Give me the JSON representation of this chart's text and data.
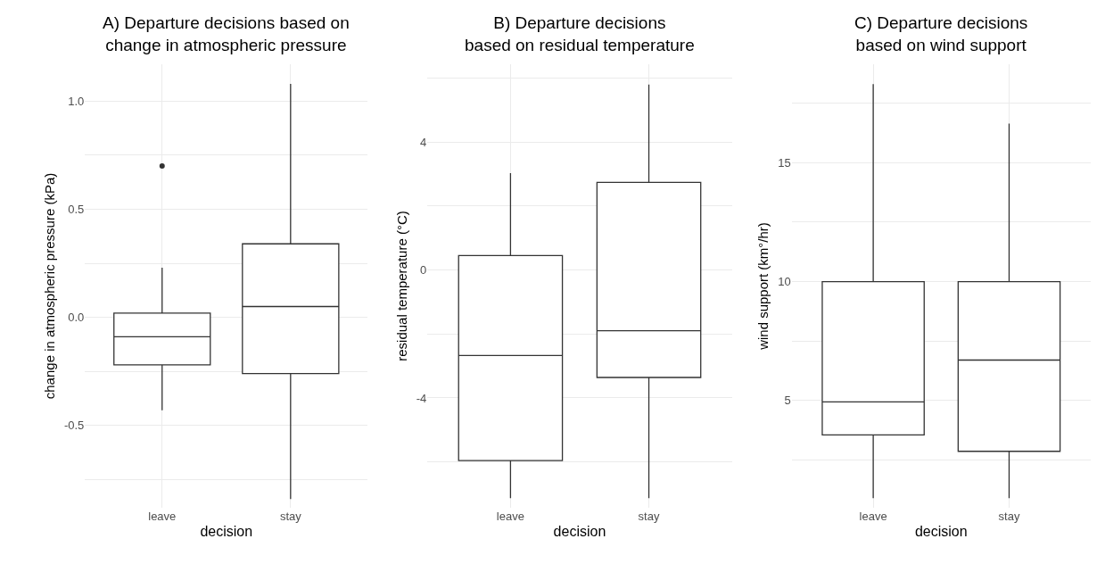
{
  "chart_data": [
    {
      "type": "box",
      "title": "A) Departure decisions based on\nchange in atmospheric pressure",
      "xlabel": "decision",
      "ylabel": "change in atmospheric pressure (kPa)",
      "categories": [
        "leave",
        "stay"
      ],
      "boxes": [
        {
          "low": -0.43,
          "q1": -0.22,
          "median": -0.09,
          "q3": 0.02,
          "high": 0.23,
          "outliers": [
            0.7
          ]
        },
        {
          "low": -0.84,
          "q1": -0.26,
          "median": 0.05,
          "q3": 0.34,
          "high": 1.08
        }
      ],
      "color": "#333333",
      "ylim": [
        -0.88,
        1.17
      ],
      "yticks": [
        {
          "value": -0.75,
          "label": null
        },
        -0.5,
        {
          "value": -0.25,
          "label": null
        },
        {
          "value": 0,
          "label": "0.0"
        },
        {
          "value": 0.25,
          "label": null
        },
        0.5,
        {
          "value": 0.75,
          "label": null
        },
        {
          "value": 1,
          "label": "1.0"
        }
      ],
      "grid": true
    },
    {
      "type": "box",
      "title": "B) Departure decisions\nbased on residual temperature",
      "xlabel": "decision",
      "ylabel": "residual temperature (°C)",
      "categories": [
        "leave",
        "stay"
      ],
      "boxes": [
        {
          "low": -7.13,
          "q1": -5.96,
          "median": -2.67,
          "q3": 0.45,
          "high": 3.03
        },
        {
          "low": -7.13,
          "q1": -3.36,
          "median": -1.9,
          "q3": 2.74,
          "high": 5.8
        }
      ],
      "color": "#333333",
      "ylim": [
        -7.43,
        6.43
      ],
      "yticks": [
        {
          "value": -6,
          "label": null
        },
        -4,
        {
          "value": -2,
          "label": null
        },
        0,
        {
          "value": 2,
          "label": null
        },
        4,
        {
          "value": 6,
          "label": null
        }
      ],
      "grid": true
    },
    {
      "type": "box",
      "title": "C) Departure decisions\nbased on wind support",
      "xlabel": "decision",
      "ylabel": "wind support (km°/hr)",
      "categories": [
        "leave",
        "stay"
      ],
      "boxes": [
        {
          "low": 0.89,
          "q1": 3.55,
          "median": 4.94,
          "q3": 10.0,
          "high": 18.31
        },
        {
          "low": 0.89,
          "q1": 2.86,
          "median": 6.7,
          "q3": 10.0,
          "high": 16.65
        }
      ],
      "color": "#333333",
      "ylim": [
        0.49,
        19.14
      ],
      "yticks": [
        {
          "value": 2.5,
          "label": null
        },
        5,
        {
          "value": 7.5,
          "label": null
        },
        10,
        {
          "value": 12.5,
          "label": null
        },
        15,
        {
          "value": 17.5,
          "label": null
        }
      ],
      "grid": true
    }
  ]
}
